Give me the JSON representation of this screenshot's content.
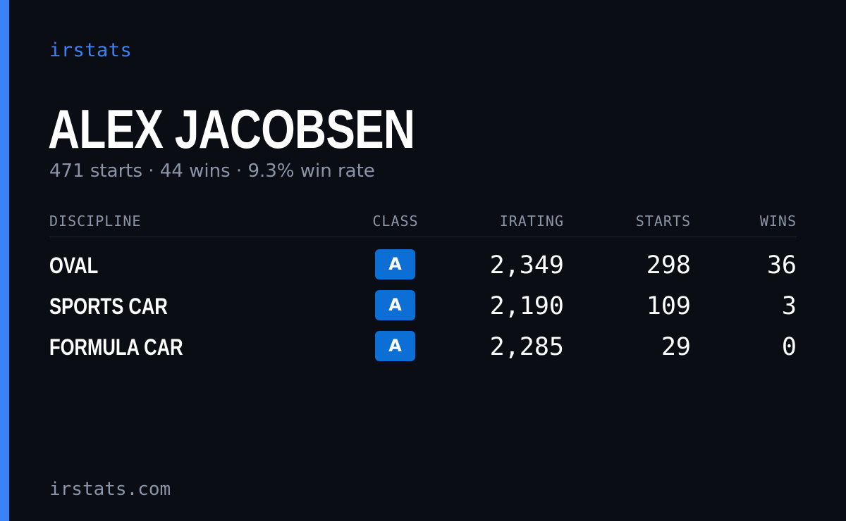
{
  "brand": "irstats",
  "driver": {
    "name": "ALEX JACOBSEN",
    "summary": "471 starts · 44 wins · 9.3% win rate"
  },
  "table": {
    "headers": {
      "discipline": "DISCIPLINE",
      "class": "CLASS",
      "irating": "IRATING",
      "starts": "STARTS",
      "wins": "WINS"
    },
    "rows": [
      {
        "discipline": "OVAL",
        "class": "A",
        "irating": "2,349",
        "starts": "298",
        "wins": "36"
      },
      {
        "discipline": "SPORTS CAR",
        "class": "A",
        "irating": "2,190",
        "starts": "109",
        "wins": "3"
      },
      {
        "discipline": "FORMULA CAR",
        "class": "A",
        "irating": "2,285",
        "starts": "29",
        "wins": "0"
      }
    ]
  },
  "footer": {
    "url": "irstats.com"
  },
  "colors": {
    "accent": "#3b82f6",
    "background": "#0a0d14",
    "class_badge": "#0b6fd6",
    "muted_text": "#8c95a8"
  }
}
